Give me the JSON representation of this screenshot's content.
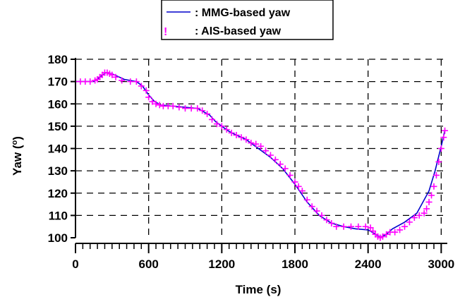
{
  "chart_data": {
    "type": "line",
    "xlabel": "Time (s)",
    "ylabel": "Yaw (o)",
    "ylabel_main": "Yaw (",
    "ylabel_degree": "o",
    "ylabel_close": ")",
    "xlim": [
      0,
      3050
    ],
    "ylim": [
      100,
      180
    ],
    "xticks": [
      0,
      600,
      1200,
      1800,
      2400,
      3000
    ],
    "yticks": [
      100,
      110,
      120,
      130,
      140,
      150,
      160,
      170,
      180
    ],
    "grid": "dashed",
    "legend_position": "top-center",
    "series": [
      {
        "name": ": MMG-based yaw",
        "style": "line",
        "color": "#0000cc",
        "x": [
          0,
          150,
          200,
          250,
          300,
          400,
          500,
          550,
          600,
          650,
          700,
          800,
          900,
          1000,
          1100,
          1150,
          1200,
          1250,
          1300,
          1400,
          1500,
          1600,
          1700,
          1800,
          1900,
          2000,
          2100,
          2200,
          2300,
          2400,
          2450,
          2500,
          2550,
          2600,
          2700,
          2800,
          2900,
          2950,
          3000,
          3030
        ],
        "y": [
          170,
          170,
          172,
          174,
          173.5,
          171,
          170,
          168,
          164,
          161,
          159.5,
          159,
          158.5,
          158,
          155,
          152,
          150,
          148,
          146.5,
          144,
          140,
          136,
          131,
          124,
          116,
          110,
          106.5,
          105,
          104,
          103.5,
          102,
          100.3,
          101.5,
          104,
          107,
          111,
          121,
          130,
          141,
          148
        ]
      },
      {
        "name": ": AIS-based yaw",
        "style": "markers",
        "marker": "+",
        "color": "#ff00ff",
        "x": [
          0,
          40,
          80,
          120,
          160,
          180,
          200,
          220,
          240,
          260,
          280,
          300,
          330,
          380,
          450,
          500,
          540,
          580,
          600,
          630,
          660,
          690,
          720,
          760,
          800,
          850,
          900,
          950,
          1000,
          1040,
          1080,
          1120,
          1160,
          1200,
          1240,
          1280,
          1320,
          1360,
          1400,
          1440,
          1480,
          1520,
          1560,
          1600,
          1640,
          1680,
          1720,
          1760,
          1800,
          1830,
          1860,
          1900,
          1940,
          1980,
          2020,
          2060,
          2100,
          2140,
          2200,
          2260,
          2320,
          2380,
          2420,
          2440,
          2460,
          2480,
          2500,
          2520,
          2550,
          2580,
          2620,
          2660,
          2700,
          2740,
          2780,
          2820,
          2860,
          2880,
          2900,
          2920,
          2940,
          2960,
          2980,
          3000,
          3020,
          3030
        ],
        "y": [
          170,
          170,
          170,
          170,
          170.5,
          171,
          172,
          173,
          174,
          174,
          173.5,
          173,
          172,
          170.5,
          170,
          170,
          168,
          166,
          163,
          161,
          160,
          159.5,
          159,
          159,
          159,
          158.5,
          158,
          158,
          158,
          157,
          155.5,
          153,
          151,
          150,
          148.5,
          147,
          146,
          145,
          144,
          142.5,
          142,
          141,
          139,
          137,
          135,
          133,
          131,
          128,
          125,
          123,
          121,
          117,
          114,
          112,
          110,
          108,
          106.5,
          105,
          105,
          105,
          105,
          105,
          104.5,
          103,
          101.5,
          100.5,
          100,
          100.5,
          101.5,
          102.5,
          102.5,
          103.5,
          105,
          107,
          109,
          110,
          111,
          113,
          116,
          119,
          123,
          128,
          134,
          140,
          145,
          148
        ]
      }
    ]
  }
}
